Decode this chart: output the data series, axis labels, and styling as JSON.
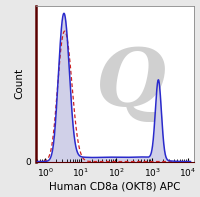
{
  "ylabel": "Count",
  "xlabel": "Human CD8a (OKT8) APC",
  "xlim": [
    0.55,
    15000
  ],
  "ylim": [
    0,
    1.05
  ],
  "background_color": "#e8e8e8",
  "plot_bg_color": "#ffffff",
  "solid_color": "#2a2acc",
  "dashed_color": "#cc2222",
  "fill_color": "#d0d0e8",
  "watermark_color": "#d0d0d0",
  "tick_label_size": 6.5,
  "axis_label_size": 7.5,
  "figsize": [
    2.0,
    1.97
  ],
  "dpi": 100
}
